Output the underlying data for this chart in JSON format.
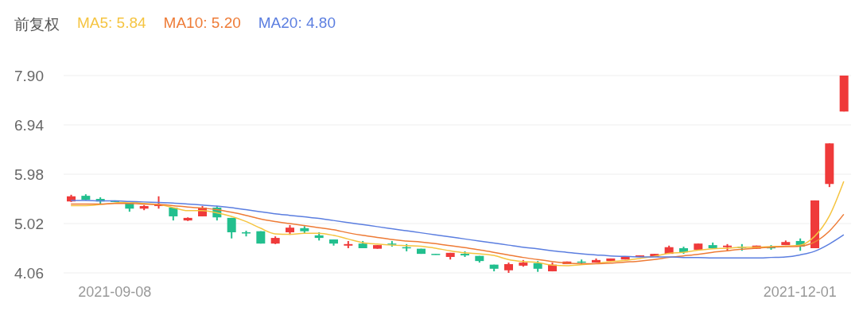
{
  "chart_data": {
    "type": "candlestick",
    "legend_title": "前复权",
    "legend": "top left",
    "grid": "y",
    "ylim": [
      4.06,
      7.9
    ],
    "yticks": [
      {
        "value": 4.06,
        "label": "4.06"
      },
      {
        "value": 5.02,
        "label": "5.02"
      },
      {
        "value": 5.98,
        "label": "5.98"
      },
      {
        "value": 6.94,
        "label": "6.94"
      },
      {
        "value": 7.9,
        "label": "7.90"
      }
    ],
    "categories": [
      null,
      null,
      null,
      "2021-09-08",
      null,
      null,
      null,
      null,
      null,
      null,
      null,
      null,
      null,
      null,
      null,
      null,
      null,
      null,
      null,
      null,
      null,
      null,
      null,
      null,
      null,
      null,
      null,
      null,
      null,
      null,
      null,
      null,
      null,
      null,
      null,
      null,
      null,
      null,
      null,
      null,
      null,
      null,
      null,
      null,
      null,
      null,
      null,
      null,
      null,
      null,
      "2021-12-01",
      null,
      null,
      null
    ],
    "ohlc": [
      [
        5.45,
        5.58,
        5.44,
        5.55
      ],
      [
        5.56,
        5.59,
        5.47,
        5.48
      ],
      [
        5.5,
        5.53,
        5.39,
        5.45
      ],
      [
        5.47,
        5.47,
        5.44,
        5.44
      ],
      [
        5.42,
        5.42,
        5.25,
        5.31
      ],
      [
        5.31,
        5.38,
        5.28,
        5.36
      ],
      [
        5.36,
        5.55,
        5.31,
        5.39
      ],
      [
        5.33,
        5.33,
        5.08,
        5.16
      ],
      [
        5.08,
        5.14,
        5.07,
        5.13
      ],
      [
        5.16,
        5.36,
        5.16,
        5.33
      ],
      [
        5.33,
        5.36,
        5.08,
        5.14
      ],
      [
        5.13,
        5.13,
        4.73,
        4.85
      ],
      [
        4.85,
        4.88,
        4.77,
        4.83
      ],
      [
        4.87,
        4.87,
        4.63,
        4.63
      ],
      [
        4.63,
        4.77,
        4.62,
        4.74
      ],
      [
        4.85,
        4.99,
        4.8,
        4.94
      ],
      [
        4.93,
        4.97,
        4.83,
        4.87
      ],
      [
        4.79,
        4.85,
        4.69,
        4.74
      ],
      [
        4.71,
        4.71,
        4.59,
        4.63
      ],
      [
        4.59,
        4.68,
        4.54,
        4.62
      ],
      [
        4.63,
        4.68,
        4.54,
        4.54
      ],
      [
        4.53,
        4.6,
        4.53,
        4.6
      ],
      [
        4.63,
        4.68,
        4.57,
        4.62
      ],
      [
        4.56,
        4.62,
        4.48,
        4.54
      ],
      [
        4.53,
        4.53,
        4.43,
        4.43
      ],
      [
        4.43,
        4.43,
        4.42,
        4.42
      ],
      [
        4.37,
        4.45,
        4.32,
        4.45
      ],
      [
        4.43,
        4.48,
        4.37,
        4.4
      ],
      [
        4.39,
        4.39,
        4.26,
        4.29
      ],
      [
        4.22,
        4.22,
        4.09,
        4.14
      ],
      [
        4.11,
        4.26,
        4.06,
        4.23
      ],
      [
        4.2,
        4.31,
        4.18,
        4.26
      ],
      [
        4.25,
        4.29,
        4.08,
        4.14
      ],
      [
        4.09,
        4.26,
        4.09,
        4.22
      ],
      [
        4.23,
        4.28,
        4.23,
        4.28
      ],
      [
        4.28,
        4.32,
        4.24,
        4.26
      ],
      [
        4.26,
        4.34,
        4.26,
        4.31
      ],
      [
        4.29,
        4.34,
        4.29,
        4.34
      ],
      [
        4.32,
        4.37,
        4.32,
        4.37
      ],
      [
        4.37,
        4.4,
        4.37,
        4.4
      ],
      [
        4.37,
        4.43,
        4.37,
        4.43
      ],
      [
        4.43,
        4.59,
        4.43,
        4.56
      ],
      [
        4.54,
        4.57,
        4.43,
        4.46
      ],
      [
        4.51,
        4.63,
        4.51,
        4.63
      ],
      [
        4.6,
        4.65,
        4.53,
        4.54
      ],
      [
        4.56,
        4.62,
        4.49,
        4.59
      ],
      [
        4.57,
        4.62,
        4.49,
        4.56
      ],
      [
        4.53,
        4.59,
        4.53,
        4.59
      ],
      [
        4.56,
        4.6,
        4.51,
        4.54
      ],
      [
        4.6,
        4.69,
        4.6,
        4.66
      ],
      [
        4.68,
        4.73,
        4.49,
        4.57
      ],
      [
        4.54,
        5.47,
        4.54,
        5.47
      ],
      [
        5.79,
        6.58,
        5.73,
        6.58
      ],
      [
        7.2,
        7.9,
        7.2,
        7.9
      ]
    ],
    "colors": [
      "#ef3a3a",
      "#22bf8e",
      "#22bf8e",
      "#22bf8e",
      "#22bf8e",
      "#ef3a3a",
      "#ef3a3a",
      "#22bf8e",
      "#ef3a3a",
      "#ef3a3a",
      "#22bf8e",
      "#22bf8e",
      "#22bf8e",
      "#22bf8e",
      "#ef3a3a",
      "#ef3a3a",
      "#22bf8e",
      "#22bf8e",
      "#22bf8e",
      "#ef3a3a",
      "#22bf8e",
      "#ef3a3a",
      "#22bf8e",
      "#22bf8e",
      "#22bf8e",
      "#22bf8e",
      "#ef3a3a",
      "#22bf8e",
      "#22bf8e",
      "#22bf8e",
      "#ef3a3a",
      "#ef3a3a",
      "#22bf8e",
      "#ef3a3a",
      "#ef3a3a",
      "#22bf8e",
      "#ef3a3a",
      "#ef3a3a",
      "#ef3a3a",
      "#ef3a3a",
      "#ef3a3a",
      "#ef3a3a",
      "#22bf8e",
      "#ef3a3a",
      "#22bf8e",
      "#ef3a3a",
      "#22bf8e",
      "#ef3a3a",
      "#22bf8e",
      "#ef3a3a",
      "#22bf8e",
      "#ef3a3a",
      "#ef3a3a",
      "#ef3a3a"
    ],
    "series": [
      {
        "name": "MA5: 5.84",
        "type": "line",
        "color": "#f5c440",
        "values": [
          5.37,
          5.37,
          5.39,
          5.42,
          5.44,
          5.41,
          5.39,
          5.33,
          5.27,
          5.27,
          5.23,
          5.16,
          5.06,
          4.93,
          4.82,
          4.81,
          4.83,
          4.83,
          4.79,
          4.72,
          4.65,
          4.62,
          4.6,
          4.59,
          4.58,
          4.54,
          4.49,
          4.45,
          4.43,
          4.4,
          4.32,
          4.28,
          4.26,
          4.21,
          4.2,
          4.22,
          4.24,
          4.28,
          4.3,
          4.34,
          4.38,
          4.44,
          4.46,
          4.5,
          4.53,
          4.54,
          4.56,
          4.56,
          4.57,
          4.58,
          4.6,
          4.77,
          5.16,
          5.84
        ]
      },
      {
        "name": "MA10: 5.20",
        "type": "line",
        "color": "#ee7b36",
        "values": [
          5.4,
          5.4,
          5.4,
          5.41,
          5.41,
          5.4,
          5.39,
          5.37,
          5.34,
          5.32,
          5.29,
          5.24,
          5.18,
          5.11,
          5.06,
          5.02,
          4.98,
          4.94,
          4.9,
          4.84,
          4.79,
          4.75,
          4.71,
          4.68,
          4.66,
          4.63,
          4.59,
          4.55,
          4.51,
          4.46,
          4.41,
          4.36,
          4.32,
          4.28,
          4.25,
          4.24,
          4.24,
          4.25,
          4.27,
          4.29,
          4.32,
          4.36,
          4.39,
          4.42,
          4.46,
          4.49,
          4.52,
          4.54,
          4.56,
          4.57,
          4.58,
          4.66,
          4.87,
          5.2
        ]
      },
      {
        "name": "MA20: 4.80",
        "type": "line",
        "color": "#5b7ee0",
        "values": [
          5.47,
          5.47,
          5.46,
          5.46,
          5.45,
          5.44,
          5.43,
          5.42,
          5.4,
          5.38,
          5.36,
          5.33,
          5.29,
          5.25,
          5.21,
          5.18,
          5.15,
          5.12,
          5.08,
          5.04,
          5.0,
          4.96,
          4.92,
          4.88,
          4.84,
          4.8,
          4.76,
          4.72,
          4.68,
          4.64,
          4.6,
          4.56,
          4.53,
          4.49,
          4.46,
          4.43,
          4.41,
          4.39,
          4.38,
          4.37,
          4.37,
          4.37,
          4.36,
          4.36,
          4.35,
          4.35,
          4.35,
          4.35,
          4.36,
          4.37,
          4.41,
          4.48,
          4.62,
          4.8
        ]
      }
    ]
  }
}
